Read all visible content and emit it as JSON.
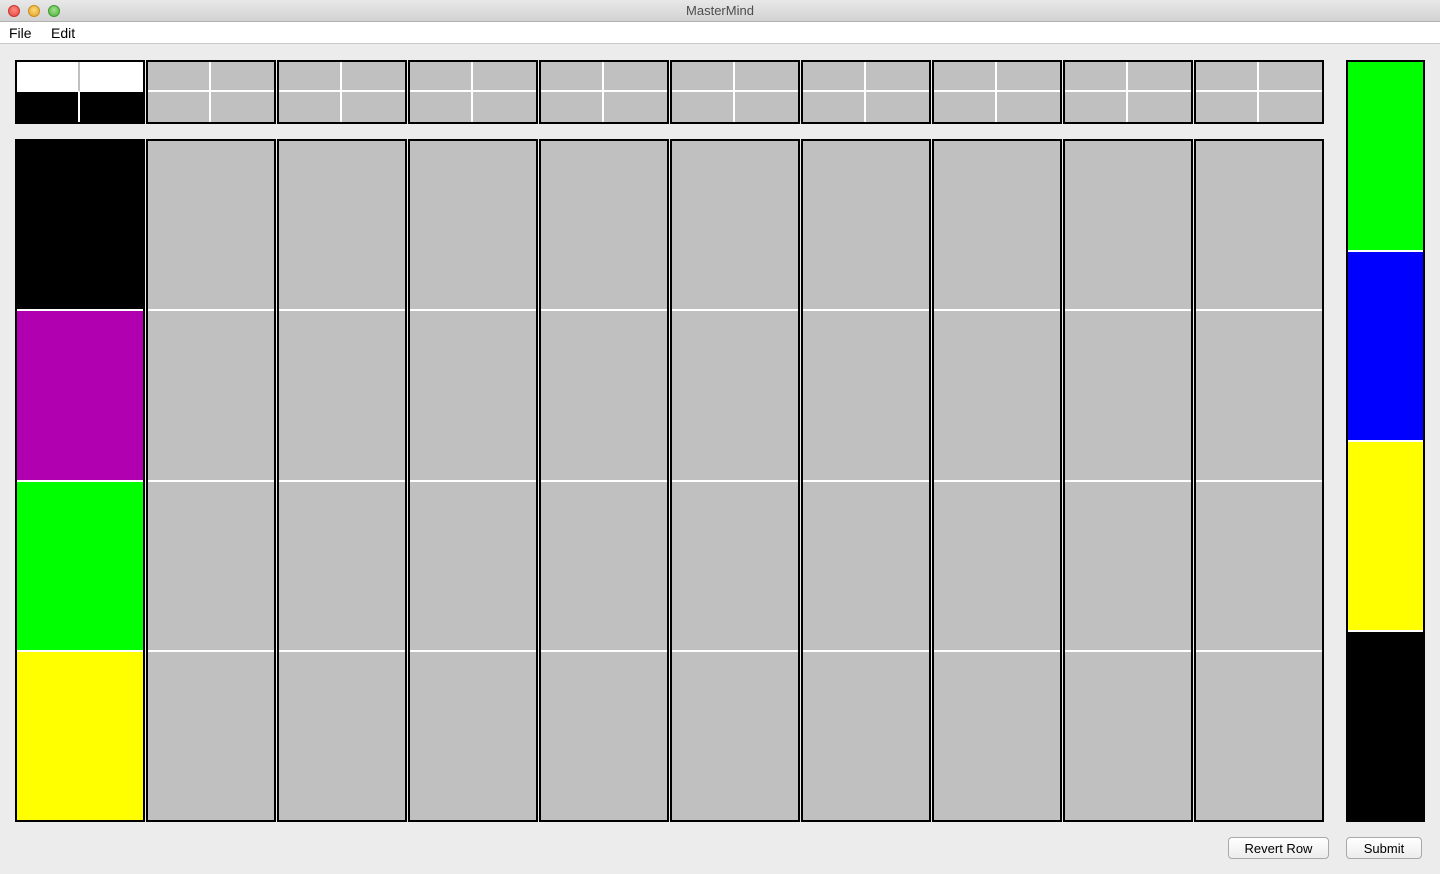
{
  "window": {
    "title": "MasterMind"
  },
  "menu": {
    "items": [
      "File",
      "Edit"
    ]
  },
  "colors": {
    "empty": "#c0c0c0",
    "black": "#000000",
    "purple": "#b000b0",
    "green": "#00ff00",
    "yellow": "#ffff00",
    "blue": "#0000ff",
    "white": "#ffffff"
  },
  "feedback": [
    [
      "white",
      "white",
      "black",
      "black"
    ],
    [
      "empty",
      "empty",
      "empty",
      "empty"
    ],
    [
      "empty",
      "empty",
      "empty",
      "empty"
    ],
    [
      "empty",
      "empty",
      "empty",
      "empty"
    ],
    [
      "empty",
      "empty",
      "empty",
      "empty"
    ],
    [
      "empty",
      "empty",
      "empty",
      "empty"
    ],
    [
      "empty",
      "empty",
      "empty",
      "empty"
    ],
    [
      "empty",
      "empty",
      "empty",
      "empty"
    ],
    [
      "empty",
      "empty",
      "empty",
      "empty"
    ],
    [
      "empty",
      "empty",
      "empty",
      "empty"
    ]
  ],
  "guesses": [
    [
      "black",
      "purple",
      "green",
      "yellow"
    ],
    [
      "empty",
      "empty",
      "empty",
      "empty"
    ],
    [
      "empty",
      "empty",
      "empty",
      "empty"
    ],
    [
      "empty",
      "empty",
      "empty",
      "empty"
    ],
    [
      "empty",
      "empty",
      "empty",
      "empty"
    ],
    [
      "empty",
      "empty",
      "empty",
      "empty"
    ],
    [
      "empty",
      "empty",
      "empty",
      "empty"
    ],
    [
      "empty",
      "empty",
      "empty",
      "empty"
    ],
    [
      "empty",
      "empty",
      "empty",
      "empty"
    ],
    [
      "empty",
      "empty",
      "empty",
      "empty"
    ]
  ],
  "palette": [
    "green",
    "blue",
    "yellow",
    "black"
  ],
  "buttons": {
    "revert_label": "Revert Row",
    "submit_label": "Submit"
  }
}
